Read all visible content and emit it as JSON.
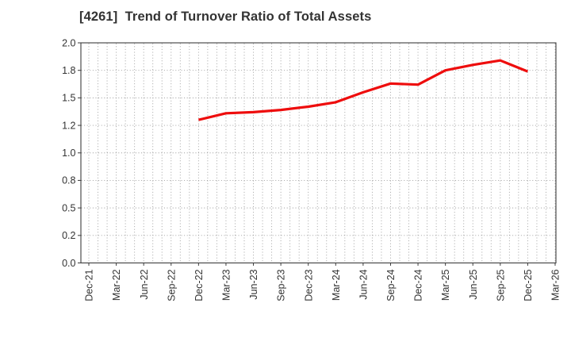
{
  "chart": {
    "title": "[4261]  Trend of Turnover Ratio of Total Assets"
  },
  "chart_data": {
    "type": "line",
    "title": "[4261]  Trend of Turnover Ratio of Total Assets",
    "xlabel": "",
    "ylabel": "",
    "grid": true,
    "legend_visible": false,
    "x_axis": {
      "tick_labels": [
        "Dec-21",
        "Mar-22",
        "Jun-22",
        "Sep-22",
        "Dec-22",
        "Mar-23",
        "Jun-23",
        "Sep-23",
        "Dec-23",
        "Mar-24",
        "Jun-24",
        "Sep-24",
        "Dec-24",
        "Mar-25",
        "Jun-25",
        "Sep-25",
        "Dec-25",
        "Mar-26"
      ],
      "minor_gridlines_per_interval": 3
    },
    "y_axis": {
      "min": 0.0,
      "max": 2.0,
      "tick_step": 0.25,
      "tick_values": [
        0,
        0.25,
        0.5,
        0.75,
        1.0,
        1.25,
        1.5,
        1.75,
        2.0
      ],
      "tick_labels": [
        "0.0",
        "0.2",
        "0.5",
        "0.8",
        "1.0",
        "1.2",
        "1.5",
        "1.8",
        "2.0"
      ]
    },
    "series": [
      {
        "name": "Turnover Ratio of Total Assets",
        "color": "#ee0d0d",
        "x": [
          "Dec-22",
          "Mar-23",
          "Jun-23",
          "Sep-23",
          "Dec-23",
          "Mar-24",
          "Jun-24",
          "Sep-24",
          "Dec-24",
          "Mar-25",
          "Jun-25",
          "Sep-25",
          "Dec-25"
        ],
        "values": [
          1.3,
          1.36,
          1.37,
          1.39,
          1.42,
          1.46,
          1.55,
          1.63,
          1.62,
          1.75,
          1.8,
          1.84,
          1.74
        ]
      }
    ],
    "colors": {
      "line": "#ee0d0d",
      "grid": "#999999",
      "frame": "#3c3c3c",
      "text": "#333333",
      "background": "#ffffff"
    }
  }
}
